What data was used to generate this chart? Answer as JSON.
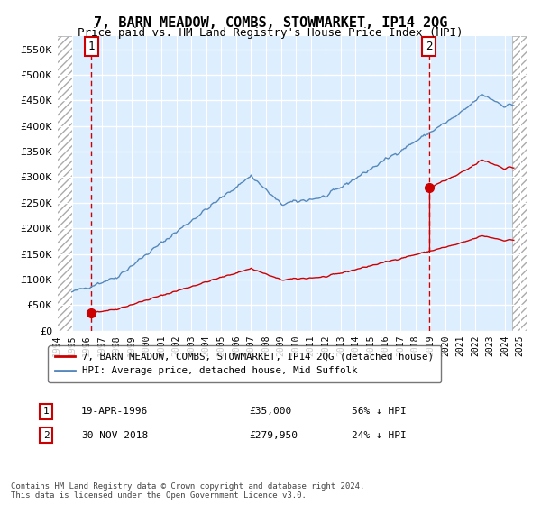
{
  "title": "7, BARN MEADOW, COMBS, STOWMARKET, IP14 2QG",
  "subtitle": "Price paid vs. HM Land Registry's House Price Index (HPI)",
  "ylim": [
    0,
    575000
  ],
  "yticks": [
    0,
    50000,
    100000,
    150000,
    200000,
    250000,
    300000,
    350000,
    400000,
    450000,
    500000,
    550000
  ],
  "xlim_start": 1994.0,
  "xlim_end": 2025.5,
  "hatch_end": 2025.08,
  "hpi_start_x": 1995.0,
  "hpi_end_x": 2024.5,
  "sale1": {
    "year": 1996.3,
    "price": 35000,
    "label": "1",
    "date": "19-APR-1996",
    "pct": "56% ↓ HPI"
  },
  "sale2": {
    "year": 2018.92,
    "price": 279950,
    "label": "2",
    "date": "30-NOV-2018",
    "pct": "24% ↓ HPI"
  },
  "hpi_color": "#5588bb",
  "sale_color": "#cc0000",
  "background_plot": "#ddeeff",
  "grid_color": "#ffffff",
  "legend_label_sale": "7, BARN MEADOW, COMBS, STOWMARKET, IP14 2QG (detached house)",
  "legend_label_hpi": "HPI: Average price, detached house, Mid Suffolk",
  "footnote": "Contains HM Land Registry data © Crown copyright and database right 2024.\nThis data is licensed under the Open Government Licence v3.0."
}
